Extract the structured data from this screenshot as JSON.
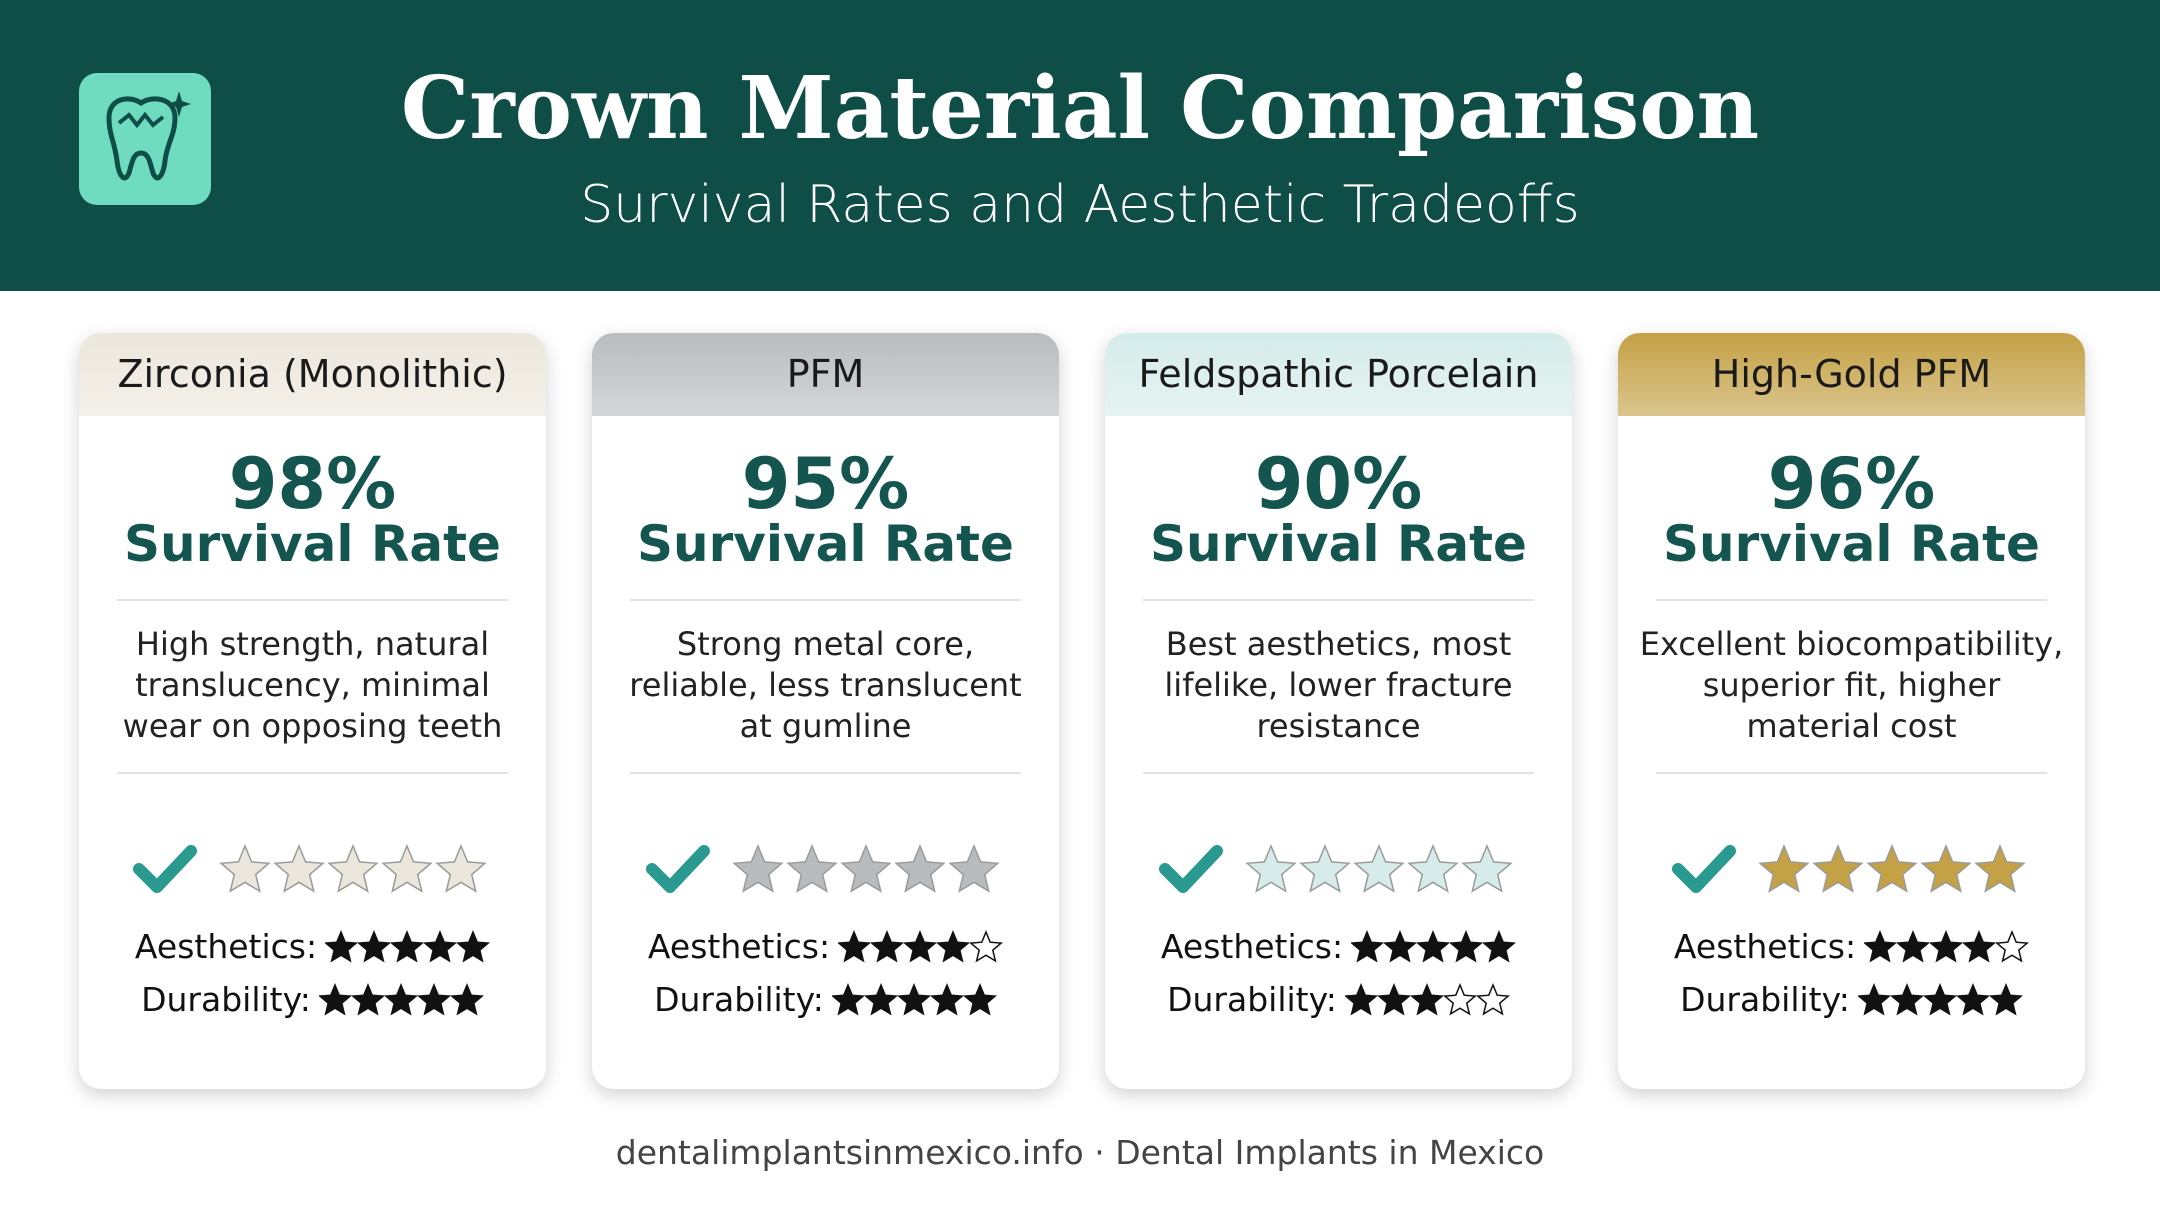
{
  "header": {
    "title": "Crown Material Comparison",
    "subtitle": "Survival Rates and Aesthetic Tradeoffs"
  },
  "cards": [
    {
      "name": "Zirconia (Monolithic)",
      "rate": "98%",
      "rate_label": "Survival Rate",
      "description": [
        "High strength, natural",
        "translucency, minimal",
        "wear on opposing teeth"
      ],
      "aesthetics_label": "Aesthetics:",
      "aesthetics": 5,
      "durability_label": "Durability:",
      "durability": 5,
      "color": "#ece7dc"
    },
    {
      "name": "PFM",
      "rate": "95%",
      "rate_label": "Survival Rate",
      "description": [
        "Strong metal core,",
        "reliable, less translucent",
        "at gumline"
      ],
      "aesthetics_label": "Aesthetics:",
      "aesthetics": 4,
      "durability_label": "Durability:",
      "durability": 5,
      "color": "#b9bcbf"
    },
    {
      "name": "Feldspathic Porcelain",
      "rate": "90%",
      "rate_label": "Survival Rate",
      "description": [
        "Best aesthetics, most",
        "lifelike, lower fracture",
        "resistance"
      ],
      "aesthetics_label": "Aesthetics:",
      "aesthetics": 5,
      "durability_label": "Durability:",
      "durability": 3,
      "color": "#d5ecea"
    },
    {
      "name": "High-Gold PFM",
      "rate": "96%",
      "rate_label": "Survival Rate",
      "description": [
        "Excellent biocompatibility,",
        "superior fit, higher",
        "material cost"
      ],
      "aesthetics_label": "Aesthetics:",
      "aesthetics": 4,
      "durability_label": "Durability:",
      "durability": 5,
      "color": "#c4a145"
    }
  ],
  "footer": "dentalimplantsinmexico.info · Dental Implants in Mexico"
}
